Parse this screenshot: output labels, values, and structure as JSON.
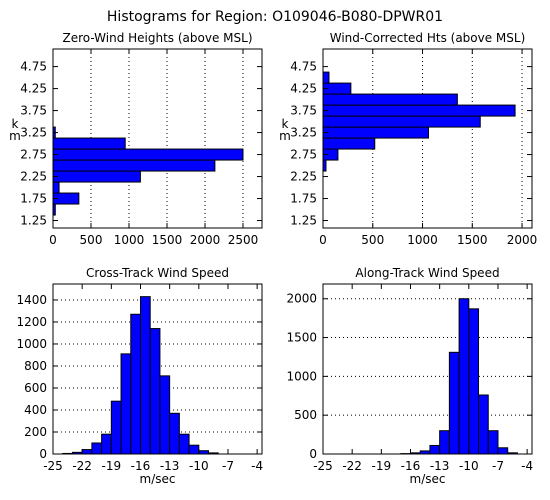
{
  "figure_title": "Histograms for Region:  O109046-B080-DPWR01",
  "chart_data": [
    {
      "type": "bar",
      "orientation": "horizontal",
      "title": "Zero-Wind Heights (above MSL)",
      "ylabel": "k\nm",
      "xlabel": "",
      "xlim": [
        0,
        2750
      ],
      "ylim": [
        1.08,
        5.15
      ],
      "xticks": [
        0,
        500,
        1000,
        1500,
        2000,
        2500
      ],
      "yticks": [
        1.25,
        1.75,
        2.25,
        2.75,
        3.25,
        3.75,
        4.25,
        4.75
      ],
      "ytick_labels": [
        "1.25",
        "1.75",
        "2.25",
        "2.75",
        "3.25",
        "3.75",
        "4.25",
        "4.75"
      ],
      "grid": "vertical-dotted",
      "bin_width": 0.25,
      "bins": [
        {
          "start": 1.375,
          "value": 30
        },
        {
          "start": 1.625,
          "value": 340
        },
        {
          "start": 1.875,
          "value": 80
        },
        {
          "start": 2.125,
          "value": 1150
        },
        {
          "start": 2.375,
          "value": 2130
        },
        {
          "start": 2.625,
          "value": 2500
        },
        {
          "start": 2.875,
          "value": 950
        },
        {
          "start": 3.125,
          "value": 30
        }
      ]
    },
    {
      "type": "bar",
      "orientation": "horizontal",
      "title": "Wind-Corrected Hts (above MSL)",
      "ylabel": "k\nm",
      "xlabel": "",
      "xlim": [
        0,
        2100
      ],
      "ylim": [
        1.08,
        5.15
      ],
      "xticks": [
        0,
        500,
        1000,
        1500,
        2000
      ],
      "yticks": [
        1.25,
        1.75,
        2.25,
        2.75,
        3.25,
        3.75,
        4.25,
        4.75
      ],
      "ytick_labels": [
        "1.25",
        "1.75",
        "2.25",
        "2.75",
        "3.25",
        "3.75",
        "4.25",
        "4.75"
      ],
      "grid": "vertical-dotted",
      "bin_width": 0.25,
      "bins": [
        {
          "start": 2.375,
          "value": 30
        },
        {
          "start": 2.625,
          "value": 150
        },
        {
          "start": 2.875,
          "value": 520
        },
        {
          "start": 3.125,
          "value": 1060
        },
        {
          "start": 3.375,
          "value": 1580
        },
        {
          "start": 3.625,
          "value": 1930
        },
        {
          "start": 3.875,
          "value": 1350
        },
        {
          "start": 4.125,
          "value": 280
        },
        {
          "start": 4.375,
          "value": 60
        }
      ]
    },
    {
      "type": "bar",
      "orientation": "vertical",
      "title": "Cross-Track Wind Speed",
      "xlabel": "m/sec",
      "ylabel": "",
      "xlim": [
        -25,
        -3.5
      ],
      "ylim": [
        0,
        1545
      ],
      "xticks": [
        -25,
        -22,
        -19,
        -16,
        -13,
        -10,
        -7,
        -4
      ],
      "yticks": [
        0,
        200,
        400,
        600,
        800,
        1000,
        1200,
        1400
      ],
      "grid": "horizontal-dotted",
      "bin_width": 1,
      "bins": [
        {
          "start": -24,
          "value": 5
        },
        {
          "start": -23,
          "value": 15
        },
        {
          "start": -22,
          "value": 40
        },
        {
          "start": -21,
          "value": 100
        },
        {
          "start": -20,
          "value": 180
        },
        {
          "start": -19,
          "value": 480
        },
        {
          "start": -18,
          "value": 910
        },
        {
          "start": -17,
          "value": 1270
        },
        {
          "start": -16,
          "value": 1430
        },
        {
          "start": -15,
          "value": 1140
        },
        {
          "start": -14,
          "value": 710
        },
        {
          "start": -13,
          "value": 370
        },
        {
          "start": -12,
          "value": 180
        },
        {
          "start": -11,
          "value": 80
        },
        {
          "start": -10,
          "value": 30
        },
        {
          "start": -9,
          "value": 10
        }
      ]
    },
    {
      "type": "bar",
      "orientation": "vertical",
      "title": "Along-Track Wind Speed",
      "xlabel": "m/sec",
      "ylabel": "",
      "xlim": [
        -25,
        -3.5
      ],
      "ylim": [
        0,
        2190
      ],
      "xticks": [
        -25,
        -22,
        -19,
        -16,
        -13,
        -10,
        -7,
        -4
      ],
      "yticks": [
        0,
        500,
        1000,
        1500,
        2000
      ],
      "grid": "horizontal-dotted",
      "bin_width": 1,
      "bins": [
        {
          "start": -17,
          "value": 5
        },
        {
          "start": -16,
          "value": 15
        },
        {
          "start": -15,
          "value": 40
        },
        {
          "start": -14,
          "value": 110
        },
        {
          "start": -13,
          "value": 300
        },
        {
          "start": -12,
          "value": 1310
        },
        {
          "start": -11,
          "value": 2000
        },
        {
          "start": -10,
          "value": 1870
        },
        {
          "start": -9,
          "value": 760
        },
        {
          "start": -8,
          "value": 300
        },
        {
          "start": -7,
          "value": 80
        },
        {
          "start": -6,
          "value": 15
        }
      ]
    }
  ],
  "colors": {
    "bar_fill": "#0000ff",
    "bar_edge": "#000000",
    "axes": "#000000",
    "grid": "#000000",
    "background": "#ffffff"
  }
}
